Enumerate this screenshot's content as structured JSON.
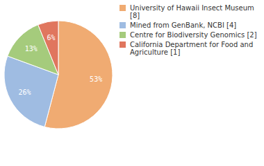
{
  "chart_data": {
    "type": "pie",
    "categories": [
      "University of Hawaii Insect Museum [8]",
      "Mined from GenBank, NCBI [4]",
      "Centre for Biodiversity Genomics [2]",
      "California Department for Food and Agriculture [1]"
    ],
    "values": [
      53,
      26,
      13,
      6
    ],
    "value_labels": [
      "53%",
      "26%",
      "13%",
      "6%"
    ],
    "data_labels": true,
    "colors": [
      "#f0ab72",
      "#9fbce2",
      "#a5cb7c",
      "#e0765e"
    ],
    "legend": "right"
  }
}
